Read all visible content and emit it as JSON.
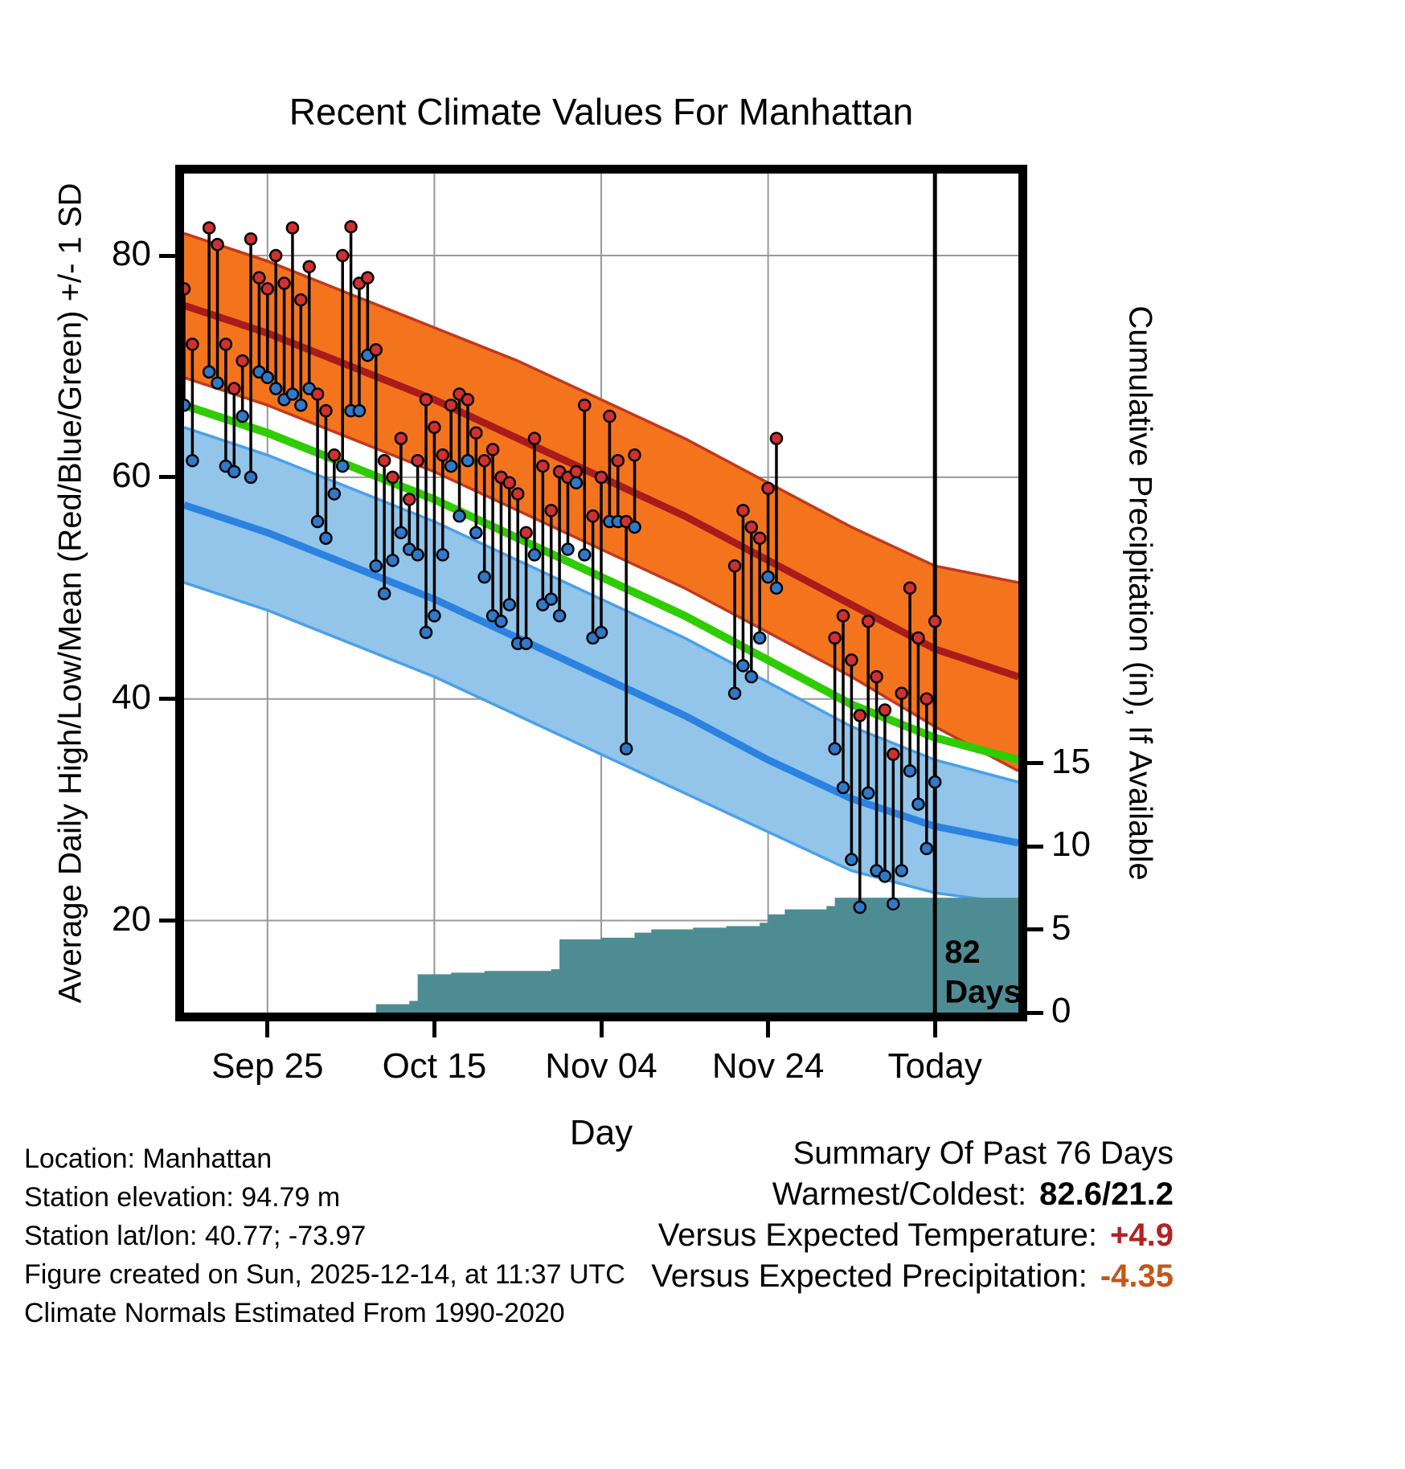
{
  "title": "Recent Climate Values For Manhattan",
  "footer_left": {
    "lines": [
      "Location: Manhattan",
      "Station elevation: 94.79 m",
      "Station lat/lon: 40.77; -73.97",
      "Figure created on Sun, 2025-12-14, at 11:37 UTC",
      "Climate Normals Estimated From 1990-2020"
    ]
  },
  "summary": {
    "heading": "Summary Of Past 76 Days",
    "rows": [
      {
        "label": "Warmest/Coldest:",
        "value": "82.6/21.2",
        "color": "#000000"
      },
      {
        "label": "Versus Expected Temperature:",
        "value": "+4.9",
        "color": "#b22222"
      },
      {
        "label": "Versus Expected Precipitation:",
        "value": "-4.35",
        "color": "#c2571a"
      }
    ]
  },
  "chart_data": {
    "type": "line",
    "title": "Recent Climate Values For Manhattan",
    "xlabel": "Day",
    "ylabel_left": "Average Daily High/Low/Mean (Red/Blue/Green) +/- 1 SD",
    "ylabel_right": "Cumulative Precipitation (in), If Available",
    "x_domain_days": [
      0,
      100
    ],
    "x_ticks": [
      {
        "day": 10,
        "label": "Sep 25"
      },
      {
        "day": 30,
        "label": "Oct 15"
      },
      {
        "day": 50,
        "label": "Nov 04"
      },
      {
        "day": 70,
        "label": "Nov 24"
      },
      {
        "day": 90,
        "label": "Today"
      }
    ],
    "y_left": {
      "lim": [
        11.7,
        87.4
      ],
      "ticks": [
        20,
        40,
        60,
        80
      ]
    },
    "y_right": {
      "ticks": [
        0,
        5,
        10,
        15
      ]
    },
    "annotation": {
      "day": 90,
      "lines": [
        "82",
        "Days"
      ]
    },
    "normals_days": [
      0,
      10,
      20,
      30,
      40,
      50,
      60,
      70,
      80,
      90,
      100
    ],
    "normal_high": {
      "upper": [
        82,
        79.5,
        76.5,
        73.5,
        70.5,
        67,
        63.5,
        59.5,
        55.5,
        52,
        50.5
      ],
      "mean": [
        75.5,
        73,
        70,
        67,
        63.5,
        60,
        56.5,
        52.5,
        48.5,
        44.5,
        42
      ],
      "lower": [
        69,
        66.5,
        63.5,
        60.5,
        57,
        53.5,
        50,
        46,
        42,
        37.5,
        33.5
      ]
    },
    "normal_mean_green": [
      66.5,
      64,
      61,
      58,
      54.5,
      51,
      47.5,
      43.5,
      39.5,
      36.5,
      34.5
    ],
    "normal_low": {
      "upper": [
        64.5,
        62,
        59,
        56,
        52.5,
        49,
        45.5,
        41.5,
        37.5,
        34.5,
        32.5
      ],
      "mean": [
        57.5,
        55,
        52,
        49,
        45.5,
        42,
        38.5,
        34.5,
        31,
        28.5,
        27
      ],
      "lower": [
        50.5,
        48,
        45,
        42,
        38.5,
        35,
        31.5,
        28,
        24.5,
        22.5,
        21.5
      ]
    },
    "observations": [
      [
        0,
        77,
        66.5
      ],
      [
        1,
        72,
        61.5
      ],
      [
        3,
        82.5,
        69.5
      ],
      [
        4,
        81,
        68.5
      ],
      [
        5,
        72,
        61
      ],
      [
        6,
        68,
        60.5
      ],
      [
        7,
        70.5,
        65.5
      ],
      [
        8,
        81.5,
        60
      ],
      [
        9,
        78,
        69.5
      ],
      [
        10,
        77,
        69
      ],
      [
        11,
        80,
        68
      ],
      [
        12,
        77.5,
        67
      ],
      [
        13,
        82.5,
        67.5
      ],
      [
        14,
        76,
        66.5
      ],
      [
        15,
        79,
        68
      ],
      [
        16,
        67.5,
        56
      ],
      [
        17,
        66,
        54.5
      ],
      [
        18,
        62,
        58.5
      ],
      [
        19,
        80,
        61
      ],
      [
        20,
        82.6,
        66
      ],
      [
        21,
        77.5,
        66
      ],
      [
        22,
        78,
        71
      ],
      [
        23,
        71.5,
        52
      ],
      [
        24,
        61.5,
        49.5
      ],
      [
        25,
        60,
        52.5
      ],
      [
        26,
        63.5,
        55
      ],
      [
        27,
        58,
        53.5
      ],
      [
        28,
        61.5,
        53
      ],
      [
        29,
        67,
        46
      ],
      [
        30,
        64.5,
        47.5
      ],
      [
        31,
        62,
        53
      ],
      [
        32,
        66.5,
        61
      ],
      [
        33,
        67.5,
        56.5
      ],
      [
        34,
        67,
        61.5
      ],
      [
        35,
        64,
        55
      ],
      [
        36,
        61.5,
        51
      ],
      [
        37,
        62.5,
        47.5
      ],
      [
        38,
        60,
        47
      ],
      [
        39,
        59.5,
        48.5
      ],
      [
        40,
        58.5,
        45
      ],
      [
        41,
        55,
        45
      ],
      [
        42,
        63.5,
        53
      ],
      [
        43,
        61,
        48.5
      ],
      [
        44,
        57,
        49
      ],
      [
        45,
        60.5,
        47.5
      ],
      [
        46,
        60,
        53.5
      ],
      [
        47,
        60.5,
        59.5
      ],
      [
        48,
        66.5,
        53
      ],
      [
        49,
        56.5,
        45.5
      ],
      [
        50,
        60,
        46
      ],
      [
        51,
        65.5,
        56
      ],
      [
        52,
        61.5,
        56
      ],
      [
        53,
        56,
        35.5
      ],
      [
        54,
        62,
        55.5
      ],
      [
        66,
        52,
        40.5
      ],
      [
        67,
        57,
        43
      ],
      [
        68,
        55.5,
        42
      ],
      [
        69,
        54.5,
        45.5
      ],
      [
        70,
        59,
        51
      ],
      [
        71,
        63.5,
        50
      ],
      [
        78,
        45.5,
        35.5
      ],
      [
        79,
        47.5,
        32
      ],
      [
        80,
        43.5,
        25.5
      ],
      [
        81,
        38.5,
        21.2
      ],
      [
        82,
        47,
        31.5
      ],
      [
        83,
        42,
        24.5
      ],
      [
        84,
        39,
        24
      ],
      [
        85,
        35,
        21.5
      ],
      [
        86,
        40.5,
        24.5
      ],
      [
        87,
        50,
        33.5
      ],
      [
        88,
        45.5,
        30.5
      ],
      [
        89,
        40,
        26.5
      ],
      [
        90,
        47,
        32.5
      ]
    ],
    "precip_steps": [
      [
        22,
        0
      ],
      [
        23,
        0.5
      ],
      [
        27,
        0.7
      ],
      [
        28,
        2.3
      ],
      [
        32,
        2.4
      ],
      [
        36,
        2.5
      ],
      [
        44,
        2.6
      ],
      [
        45,
        4.4
      ],
      [
        50,
        4.5
      ],
      [
        54,
        4.8
      ],
      [
        56,
        5.0
      ],
      [
        61,
        5.1
      ],
      [
        65,
        5.2
      ],
      [
        69,
        5.4
      ],
      [
        70,
        5.9
      ],
      [
        72,
        6.2
      ],
      [
        77,
        6.4
      ],
      [
        78,
        6.9
      ],
      [
        100,
        6.9
      ]
    ],
    "colors": {
      "band_high": "#F4741E",
      "band_high_edge": "#C03A1D",
      "mean_high": "#A81C1C",
      "band_low": "#92C5E9",
      "band_low_edge": "#4AA0E8",
      "mean_low": "#2B82E0",
      "mean_green": "#2FCC00",
      "precip_fill": "#4E8C93",
      "obs_high_dot": "#CF3030",
      "obs_low_dot": "#3079C8",
      "grid": "#999999",
      "today_line": "#000000"
    }
  }
}
